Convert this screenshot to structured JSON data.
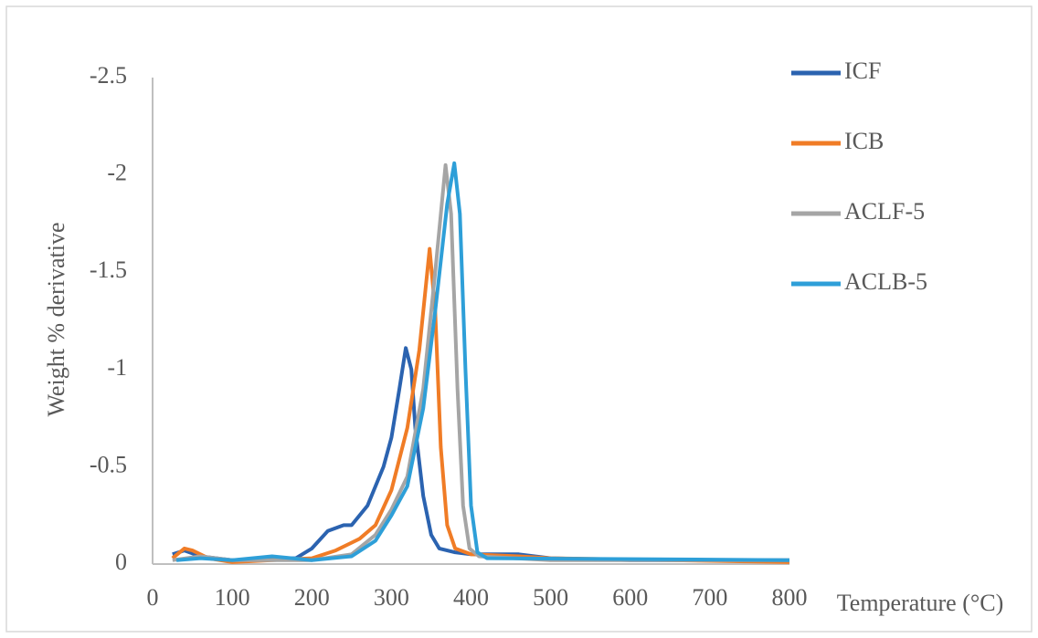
{
  "chart_data": {
    "type": "line",
    "y_label": "Weight % derivative",
    "x_label": "Temperature (°C)",
    "xlim": [
      0,
      800
    ],
    "xticks": [
      0,
      100,
      200,
      300,
      400,
      500,
      600,
      700,
      800
    ],
    "ylim": [
      0,
      -2.5
    ],
    "yticks": [
      0,
      -0.5,
      -1,
      -1.5,
      -2,
      -2.5
    ],
    "grid": false,
    "legend": "right",
    "series": [
      {
        "name": "ICF",
        "color": "#2B63B0",
        "x": [
          25,
          40,
          60,
          100,
          150,
          180,
          200,
          220,
          240,
          250,
          270,
          290,
          300,
          310,
          318,
          325,
          330,
          340,
          350,
          360,
          380,
          400,
          460,
          500,
          600,
          800
        ],
        "values": [
          -0.05,
          -0.07,
          -0.04,
          -0.02,
          -0.03,
          -0.03,
          -0.08,
          -0.17,
          -0.2,
          -0.2,
          -0.3,
          -0.5,
          -0.65,
          -0.9,
          -1.11,
          -1.0,
          -0.7,
          -0.35,
          -0.15,
          -0.08,
          -0.06,
          -0.05,
          -0.05,
          -0.03,
          -0.02,
          -0.02
        ]
      },
      {
        "name": "ICB",
        "color": "#F07C26",
        "x": [
          25,
          40,
          50,
          70,
          100,
          150,
          200,
          230,
          260,
          280,
          300,
          320,
          335,
          348,
          355,
          362,
          370,
          380,
          400,
          460,
          500,
          800
        ],
        "values": [
          -0.03,
          -0.08,
          -0.07,
          -0.03,
          -0.01,
          -0.02,
          -0.03,
          -0.07,
          -0.13,
          -0.2,
          -0.38,
          -0.7,
          -1.1,
          -1.62,
          -1.3,
          -0.6,
          -0.2,
          -0.08,
          -0.05,
          -0.04,
          -0.03,
          -0.01
        ]
      },
      {
        "name": "ACLF-5",
        "color": "#A5A5A5",
        "x": [
          25,
          60,
          100,
          200,
          250,
          280,
          300,
          320,
          340,
          355,
          368,
          375,
          383,
          390,
          398,
          410,
          500,
          800
        ],
        "values": [
          -0.02,
          -0.04,
          -0.02,
          -0.02,
          -0.05,
          -0.15,
          -0.28,
          -0.45,
          -0.9,
          -1.5,
          -2.05,
          -1.8,
          -0.9,
          -0.3,
          -0.08,
          -0.04,
          -0.02,
          -0.02
        ]
      },
      {
        "name": "ACLB-5",
        "color": "#2E9FD8",
        "x": [
          30,
          60,
          100,
          150,
          200,
          250,
          280,
          300,
          320,
          340,
          355,
          370,
          379,
          386,
          393,
          400,
          408,
          420,
          800
        ],
        "values": [
          -0.02,
          -0.03,
          -0.02,
          -0.04,
          -0.02,
          -0.04,
          -0.12,
          -0.25,
          -0.4,
          -0.8,
          -1.3,
          -1.85,
          -2.06,
          -1.8,
          -1.0,
          -0.3,
          -0.06,
          -0.03,
          -0.02
        ]
      }
    ]
  }
}
